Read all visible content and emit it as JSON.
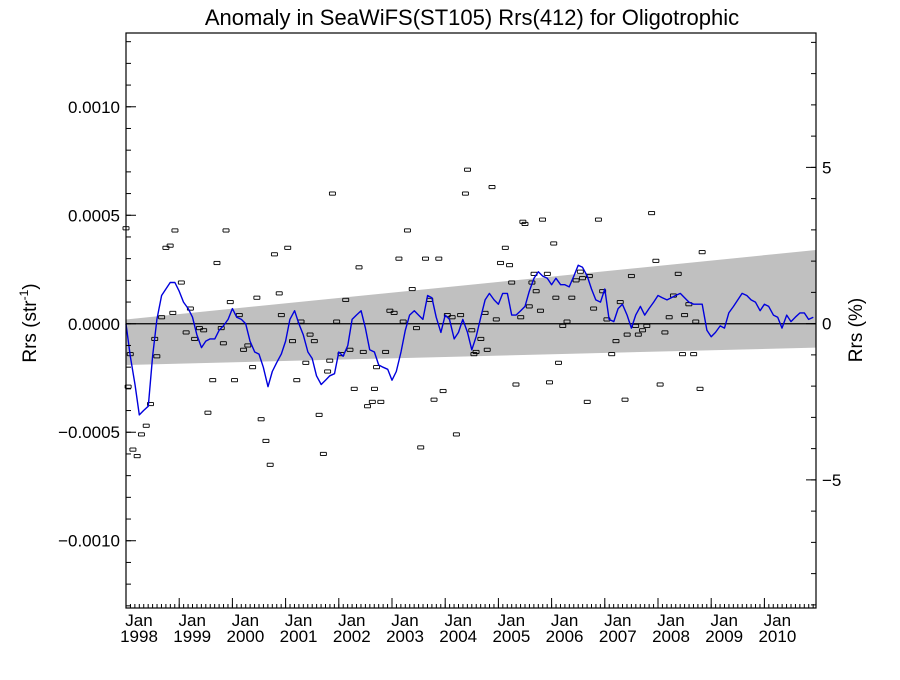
{
  "chart_data": {
    "type": "line",
    "title": "Anomaly in SeaWiFS(ST105) Rrs(412) for Oligotrophic",
    "ylabel_left": "Rrs (str",
    "ylabel_left_sup": "-1",
    "ylabel_left_close": ")",
    "ylabel_right": "Rrs (%)",
    "xlim": [
      1998.0,
      2010.97
    ],
    "ylim": [
      -0.00131,
      0.00134
    ],
    "y2lim": [
      -9.1,
      9.3
    ],
    "yticks": [
      {
        "v": 0.001,
        "label": "0.0010"
      },
      {
        "v": 0.0005,
        "label": "0.0005"
      },
      {
        "v": 0.0,
        "label": "0.0000"
      },
      {
        "v": -0.0005,
        "label": "−0.0005"
      },
      {
        "v": -0.001,
        "label": "−0.0010"
      }
    ],
    "y2ticks": [
      {
        "v": 5,
        "label": "5"
      },
      {
        "v": 0,
        "label": "0"
      },
      {
        "v": -5,
        "label": "−5"
      }
    ],
    "xticks": [
      {
        "v": 1998,
        "month": "Jan",
        "year": "1998"
      },
      {
        "v": 1999,
        "month": "Jan",
        "year": "1999"
      },
      {
        "v": 2000,
        "month": "Jan",
        "year": "2000"
      },
      {
        "v": 2001,
        "month": "Jan",
        "year": "2001"
      },
      {
        "v": 2002,
        "month": "Jan",
        "year": "2002"
      },
      {
        "v": 2003,
        "month": "Jan",
        "year": "2003"
      },
      {
        "v": 2004,
        "month": "Jan",
        "year": "2004"
      },
      {
        "v": 2005,
        "month": "Jan",
        "year": "2005"
      },
      {
        "v": 2006,
        "month": "Jan",
        "year": "2006"
      },
      {
        "v": 2007,
        "month": "Jan",
        "year": "2007"
      },
      {
        "v": 2008,
        "month": "Jan",
        "year": "2008"
      },
      {
        "v": 2009,
        "month": "Jan",
        "year": "2009"
      },
      {
        "v": 2010,
        "month": "Jan",
        "year": "2010"
      }
    ],
    "band": {
      "x": [
        1998.0,
        2010.97
      ],
      "upper": [
        2e-05,
        0.00034
      ],
      "lower": [
        -0.00019,
        -0.00011
      ]
    },
    "band_color": "#c0c0c0",
    "line_color": "#0000dd",
    "point_color": "#000000",
    "zero_line": 0.0,
    "smoothed": [
      [
        1998.0,
        0.0
      ],
      [
        1998.08,
        -0.00015
      ],
      [
        1998.17,
        -0.00028
      ],
      [
        1998.25,
        -0.00042
      ],
      [
        1998.33,
        -0.0004
      ],
      [
        1998.42,
        -0.00038
      ],
      [
        1998.5,
        -0.00015
      ],
      [
        1998.58,
        2e-05
      ],
      [
        1998.67,
        0.00013
      ],
      [
        1998.75,
        0.00016
      ],
      [
        1998.83,
        0.00019
      ],
      [
        1998.92,
        0.00019
      ],
      [
        1999.0,
        0.00015
      ],
      [
        1999.08,
        0.0001
      ],
      [
        1999.17,
        7e-05
      ],
      [
        1999.25,
        3e-05
      ],
      [
        1999.33,
        -5e-05
      ],
      [
        1999.42,
        -0.00011
      ],
      [
        1999.5,
        -8e-05
      ],
      [
        1999.58,
        -7e-05
      ],
      [
        1999.67,
        -7e-05
      ],
      [
        1999.75,
        -3e-05
      ],
      [
        1999.83,
        -1e-05
      ],
      [
        1999.92,
        2e-05
      ],
      [
        2000.0,
        7e-05
      ],
      [
        2000.08,
        3e-05
      ],
      [
        2000.17,
        2e-05
      ],
      [
        2000.25,
        0.0
      ],
      [
        2000.33,
        -8e-05
      ],
      [
        2000.42,
        -0.00013
      ],
      [
        2000.5,
        -0.00014
      ],
      [
        2000.58,
        -0.0002
      ],
      [
        2000.67,
        -0.00029
      ],
      [
        2000.75,
        -0.00022
      ],
      [
        2000.83,
        -0.00018
      ],
      [
        2000.92,
        -0.00014
      ],
      [
        2001.0,
        -8e-05
      ],
      [
        2001.08,
        2e-05
      ],
      [
        2001.17,
        6e-05
      ],
      [
        2001.25,
        0.0
      ],
      [
        2001.33,
        -5e-05
      ],
      [
        2001.42,
        -0.00013
      ],
      [
        2001.5,
        -0.00016
      ],
      [
        2001.58,
        -0.00024
      ],
      [
        2001.67,
        -0.00028
      ],
      [
        2001.75,
        -0.00026
      ],
      [
        2001.83,
        -0.00024
      ],
      [
        2001.92,
        -0.00023
      ],
      [
        2002.0,
        -0.00013
      ],
      [
        2002.08,
        -0.00015
      ],
      [
        2002.17,
        -0.0001
      ],
      [
        2002.25,
        2e-05
      ],
      [
        2002.33,
        4e-05
      ],
      [
        2002.42,
        6e-05
      ],
      [
        2002.5,
        -2e-05
      ],
      [
        2002.58,
        -0.00012
      ],
      [
        2002.67,
        -0.00013
      ],
      [
        2002.75,
        -0.00019
      ],
      [
        2002.83,
        -0.0002
      ],
      [
        2002.92,
        -0.00021
      ],
      [
        2003.0,
        -0.00026
      ],
      [
        2003.08,
        -0.00022
      ],
      [
        2003.17,
        -0.00013
      ],
      [
        2003.25,
        -3e-05
      ],
      [
        2003.33,
        4e-05
      ],
      [
        2003.42,
        6e-05
      ],
      [
        2003.5,
        4e-05
      ],
      [
        2003.58,
        2e-05
      ],
      [
        2003.67,
        0.00013
      ],
      [
        2003.75,
        0.00012
      ],
      [
        2003.83,
        3e-05
      ],
      [
        2003.92,
        -4e-05
      ],
      [
        2004.0,
        4e-05
      ],
      [
        2004.08,
        2e-05
      ],
      [
        2004.17,
        -7e-05
      ],
      [
        2004.25,
        -4e-05
      ],
      [
        2004.33,
        2e-05
      ],
      [
        2004.42,
        -4e-05
      ],
      [
        2004.5,
        -0.00012
      ],
      [
        2004.58,
        -6e-05
      ],
      [
        2004.67,
        3e-05
      ],
      [
        2004.75,
        0.00011
      ],
      [
        2004.83,
        0.00014
      ],
      [
        2004.92,
        0.00011
      ],
      [
        2005.0,
        9e-05
      ],
      [
        2005.08,
        0.00014
      ],
      [
        2005.17,
        0.00014
      ],
      [
        2005.25,
        4e-05
      ],
      [
        2005.33,
        4e-05
      ],
      [
        2005.42,
        6e-05
      ],
      [
        2005.5,
        8e-05
      ],
      [
        2005.58,
        0.00015
      ],
      [
        2005.67,
        0.00021
      ],
      [
        2005.75,
        0.00024
      ],
      [
        2005.83,
        0.00022
      ],
      [
        2005.92,
        0.00021
      ],
      [
        2006.0,
        0.00018
      ],
      [
        2006.08,
        0.00021
      ],
      [
        2006.17,
        0.00018
      ],
      [
        2006.25,
        0.00018
      ],
      [
        2006.33,
        0.00017
      ],
      [
        2006.42,
        0.00022
      ],
      [
        2006.5,
        0.00027
      ],
      [
        2006.58,
        0.00026
      ],
      [
        2006.67,
        0.00022
      ],
      [
        2006.75,
        0.00016
      ],
      [
        2006.83,
        0.00011
      ],
      [
        2006.92,
        0.0001
      ],
      [
        2007.0,
        0.00016
      ],
      [
        2007.08,
        2e-05
      ],
      [
        2007.17,
        1e-05
      ],
      [
        2007.25,
        7e-05
      ],
      [
        2007.33,
        9e-05
      ],
      [
        2007.42,
        4e-05
      ],
      [
        2007.5,
        -2e-05
      ],
      [
        2007.58,
        4e-05
      ],
      [
        2007.67,
        8e-05
      ],
      [
        2007.75,
        4e-05
      ],
      [
        2007.83,
        7e-05
      ],
      [
        2007.92,
        0.0001
      ],
      [
        2008.0,
        0.00013
      ],
      [
        2008.08,
        0.00012
      ],
      [
        2008.17,
        0.00011
      ],
      [
        2008.25,
        0.00012
      ],
      [
        2008.33,
        0.00013
      ],
      [
        2008.42,
        0.00014
      ],
      [
        2008.5,
        0.00012
      ],
      [
        2008.58,
        0.0001
      ],
      [
        2008.67,
        9e-05
      ],
      [
        2008.75,
        9e-05
      ],
      [
        2008.83,
        9e-05
      ],
      [
        2008.92,
        -3e-05
      ],
      [
        2009.0,
        -6e-05
      ],
      [
        2009.08,
        -4e-05
      ],
      [
        2009.17,
        -1e-05
      ],
      [
        2009.25,
        -2e-05
      ],
      [
        2009.33,
        5e-05
      ],
      [
        2009.42,
        8e-05
      ],
      [
        2009.5,
        0.00011
      ],
      [
        2009.58,
        0.00014
      ],
      [
        2009.67,
        0.00013
      ],
      [
        2009.75,
        0.00011
      ],
      [
        2009.83,
        0.0001
      ],
      [
        2009.92,
        6e-05
      ],
      [
        2010.0,
        9e-05
      ],
      [
        2010.08,
        8e-05
      ],
      [
        2010.17,
        4e-05
      ],
      [
        2010.25,
        3e-05
      ],
      [
        2010.33,
        -2e-05
      ],
      [
        2010.42,
        4e-05
      ],
      [
        2010.5,
        1e-05
      ],
      [
        2010.58,
        3e-05
      ],
      [
        2010.67,
        5e-05
      ],
      [
        2010.75,
        5e-05
      ],
      [
        2010.83,
        2e-05
      ],
      [
        2010.92,
        3e-05
      ]
    ],
    "monthly_points": [
      [
        1998.0,
        0.00044
      ],
      [
        1998.04,
        -0.00029
      ],
      [
        1998.08,
        -0.00014
      ],
      [
        1998.13,
        -0.00058
      ],
      [
        1998.21,
        -0.00061
      ],
      [
        1998.29,
        -0.00051
      ],
      [
        1998.38,
        -0.00047
      ],
      [
        1998.46,
        -0.00037
      ],
      [
        1998.58,
        -0.00015
      ],
      [
        1998.54,
        -7e-05
      ],
      [
        1998.67,
        3e-05
      ],
      [
        1998.75,
        0.00035
      ],
      [
        1998.83,
        0.00036
      ],
      [
        1998.92,
        0.00043
      ],
      [
        1998.88,
        5e-05
      ],
      [
        1999.04,
        0.00019
      ],
      [
        1999.13,
        -4e-05
      ],
      [
        1999.21,
        7e-05
      ],
      [
        1999.29,
        -7e-05
      ],
      [
        1999.38,
        -2e-05
      ],
      [
        1999.46,
        -3e-05
      ],
      [
        1999.54,
        -0.00041
      ],
      [
        1999.63,
        -0.00026
      ],
      [
        1999.71,
        0.00028
      ],
      [
        1999.79,
        -2e-05
      ],
      [
        1999.83,
        -9e-05
      ],
      [
        1999.88,
        0.00043
      ],
      [
        1999.96,
        0.0001
      ],
      [
        2000.04,
        -0.00026
      ],
      [
        2000.13,
        4e-05
      ],
      [
        2000.21,
        -0.00012
      ],
      [
        2000.29,
        -0.0001
      ],
      [
        2000.38,
        -0.0002
      ],
      [
        2000.46,
        0.00012
      ],
      [
        2000.54,
        -0.00044
      ],
      [
        2000.63,
        -0.00054
      ],
      [
        2000.71,
        -0.00065
      ],
      [
        2000.79,
        0.00032
      ],
      [
        2000.88,
        0.00014
      ],
      [
        2000.92,
        4e-05
      ],
      [
        2001.04,
        0.00035
      ],
      [
        2001.13,
        -8e-05
      ],
      [
        2001.21,
        -0.00026
      ],
      [
        2001.29,
        1e-05
      ],
      [
        2001.38,
        -0.00018
      ],
      [
        2001.46,
        -5e-05
      ],
      [
        2001.54,
        -8e-05
      ],
      [
        2001.63,
        -0.00042
      ],
      [
        2001.71,
        -0.0006
      ],
      [
        2001.79,
        -0.00022
      ],
      [
        2001.83,
        -0.00017
      ],
      [
        2001.88,
        0.0006
      ],
      [
        2001.96,
        1e-05
      ],
      [
        2002.04,
        -0.00014
      ],
      [
        2002.13,
        0.00011
      ],
      [
        2002.21,
        -0.00012
      ],
      [
        2002.29,
        -0.0003
      ],
      [
        2002.38,
        0.00026
      ],
      [
        2002.46,
        -0.00013
      ],
      [
        2002.54,
        -0.00038
      ],
      [
        2002.63,
        -0.00036
      ],
      [
        2002.67,
        -0.0003
      ],
      [
        2002.71,
        -0.0002
      ],
      [
        2002.79,
        -0.00036
      ],
      [
        2002.88,
        -0.00013
      ],
      [
        2002.96,
        6e-05
      ],
      [
        2003.04,
        5e-05
      ],
      [
        2003.13,
        0.0003
      ],
      [
        2003.21,
        1e-05
      ],
      [
        2003.29,
        0.00043
      ],
      [
        2003.38,
        0.00016
      ],
      [
        2003.46,
        -2e-05
      ],
      [
        2003.54,
        -0.00057
      ],
      [
        2003.63,
        0.0003
      ],
      [
        2003.71,
        0.00011
      ],
      [
        2003.79,
        -0.00035
      ],
      [
        2003.88,
        0.0003
      ],
      [
        2003.96,
        -0.00031
      ],
      [
        2004.04,
        4e-05
      ],
      [
        2004.13,
        3e-05
      ],
      [
        2004.21,
        -0.00051
      ],
      [
        2004.29,
        4e-05
      ],
      [
        2004.38,
        0.0006
      ],
      [
        2004.42,
        0.00071
      ],
      [
        2004.5,
        -3e-05
      ],
      [
        2004.54,
        -0.00014
      ],
      [
        2004.58,
        -0.00013
      ],
      [
        2004.67,
        -7e-05
      ],
      [
        2004.75,
        5e-05
      ],
      [
        2004.79,
        -0.00012
      ],
      [
        2004.88,
        0.00063
      ],
      [
        2004.96,
        2e-05
      ],
      [
        2005.04,
        0.00028
      ],
      [
        2005.13,
        0.00035
      ],
      [
        2005.21,
        0.00027
      ],
      [
        2005.25,
        0.00019
      ],
      [
        2005.33,
        -0.00028
      ],
      [
        2005.42,
        3e-05
      ],
      [
        2005.46,
        0.00047
      ],
      [
        2005.5,
        0.00046
      ],
      [
        2005.58,
        8e-05
      ],
      [
        2005.63,
        0.00019
      ],
      [
        2005.67,
        0.00023
      ],
      [
        2005.71,
        0.00015
      ],
      [
        2005.79,
        6e-05
      ],
      [
        2005.83,
        0.00048
      ],
      [
        2005.92,
        0.00023
      ],
      [
        2005.96,
        -0.00027
      ],
      [
        2006.04,
        0.00037
      ],
      [
        2006.08,
        0.00012
      ],
      [
        2006.13,
        -0.00018
      ],
      [
        2006.21,
        -1e-05
      ],
      [
        2006.29,
        1e-05
      ],
      [
        2006.38,
        0.00012
      ],
      [
        2006.46,
        0.0002
      ],
      [
        2006.54,
        0.00024
      ],
      [
        2006.58,
        0.00021
      ],
      [
        2006.67,
        -0.00036
      ],
      [
        2006.71,
        0.00022
      ],
      [
        2006.79,
        7e-05
      ],
      [
        2006.88,
        0.00048
      ],
      [
        2006.96,
        0.00015
      ],
      [
        2007.04,
        2e-05
      ],
      [
        2007.13,
        -0.00014
      ],
      [
        2007.21,
        -8e-05
      ],
      [
        2007.29,
        0.0001
      ],
      [
        2007.38,
        -0.00035
      ],
      [
        2007.42,
        -5e-05
      ],
      [
        2007.5,
        0.00022
      ],
      [
        2007.58,
        -1e-05
      ],
      [
        2007.63,
        -5e-05
      ],
      [
        2007.71,
        -3e-05
      ],
      [
        2007.79,
        -1e-05
      ],
      [
        2007.88,
        0.00051
      ],
      [
        2007.96,
        0.00029
      ],
      [
        2008.04,
        -0.00028
      ],
      [
        2008.13,
        -4e-05
      ],
      [
        2008.21,
        3e-05
      ],
      [
        2008.29,
        0.00013
      ],
      [
        2008.38,
        0.00023
      ],
      [
        2008.46,
        -0.00014
      ],
      [
        2008.5,
        4e-05
      ],
      [
        2008.58,
        9e-05
      ],
      [
        2008.67,
        -0.00014
      ],
      [
        2008.71,
        1e-05
      ],
      [
        2008.79,
        -0.0003
      ],
      [
        2008.83,
        0.00033
      ]
    ]
  }
}
